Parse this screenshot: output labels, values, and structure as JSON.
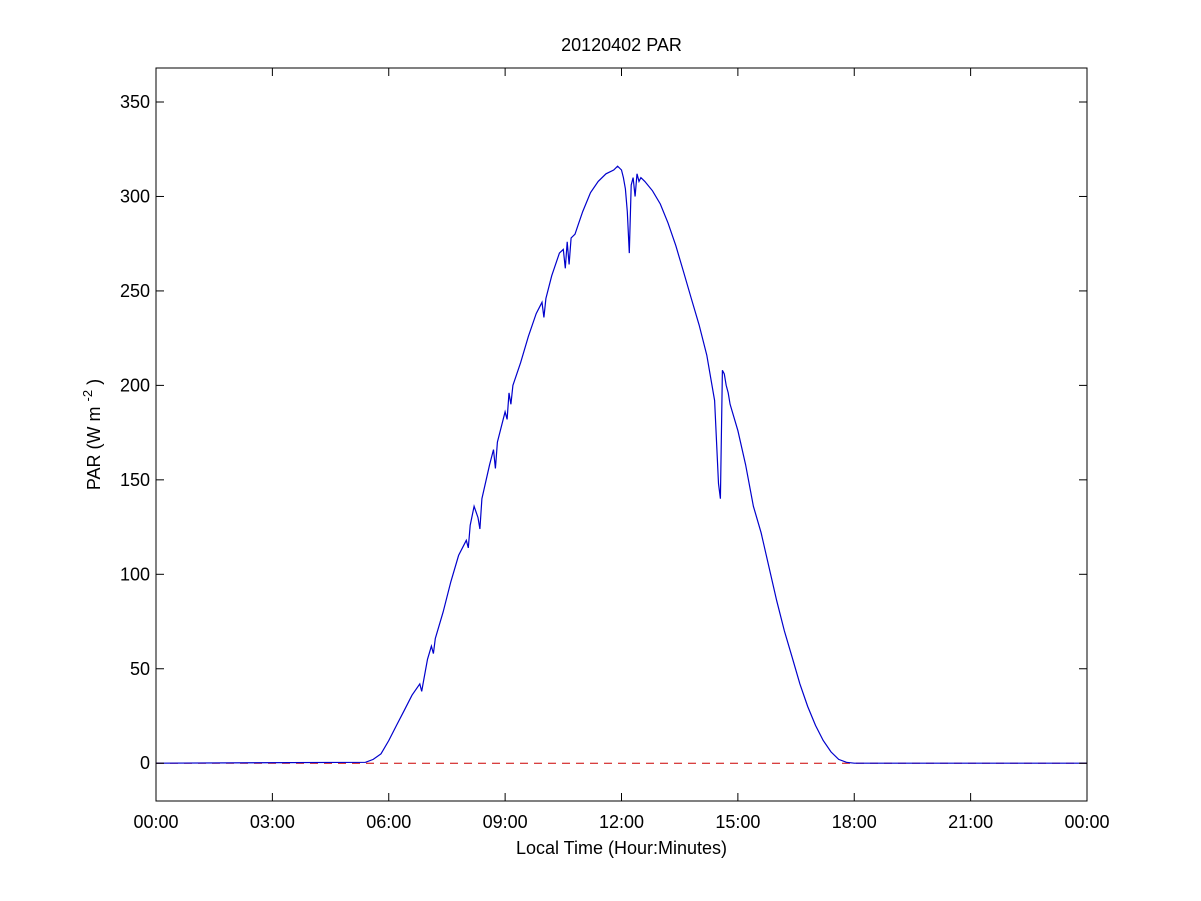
{
  "chart_data": {
    "type": "line",
    "title": "20120402 PAR",
    "xlabel": "Local Time (Hour:Minutes)",
    "ylabel_main": "PAR (W m",
    "ylabel_sup": "-2",
    "ylabel_tail": ")",
    "xlim": [
      0,
      24
    ],
    "ylim": [
      -20,
      368
    ],
    "x_ticks": [
      0,
      3,
      6,
      9,
      12,
      15,
      18,
      21,
      24
    ],
    "x_tick_labels": [
      "00:00",
      "03:00",
      "06:00",
      "09:00",
      "12:00",
      "15:00",
      "18:00",
      "21:00",
      "00:00"
    ],
    "y_ticks": [
      0,
      50,
      100,
      150,
      200,
      250,
      300,
      350
    ],
    "y_tick_labels": [
      "0",
      "50",
      "100",
      "150",
      "200",
      "250",
      "300",
      "350"
    ],
    "grid": false,
    "colors": {
      "series": "#0000cc",
      "baseline": "#cc0000",
      "axes": "#000000"
    },
    "baseline": {
      "y": 0,
      "style": "dashed"
    },
    "series": [
      {
        "x": [
          0,
          5.4,
          5.6,
          5.8,
          6.0,
          6.2,
          6.4,
          6.6,
          6.8,
          6.85,
          6.9,
          7.0,
          7.1,
          7.15,
          7.2,
          7.4,
          7.6,
          7.8,
          8.0,
          8.05,
          8.1,
          8.2,
          8.3,
          8.35,
          8.4,
          8.6,
          8.7,
          8.75,
          8.8,
          9.0,
          9.05,
          9.1,
          9.15,
          9.2,
          9.4,
          9.6,
          9.8,
          9.95,
          10.0,
          10.05,
          10.2,
          10.4,
          10.5,
          10.55,
          10.6,
          10.65,
          10.7,
          10.8,
          10.9,
          11.0,
          11.2,
          11.4,
          11.6,
          11.8,
          11.9,
          12.0,
          12.05,
          12.1,
          12.15,
          12.2,
          12.25,
          12.3,
          12.35,
          12.4,
          12.45,
          12.5,
          12.6,
          12.8,
          13.0,
          13.2,
          13.4,
          13.6,
          13.8,
          14.0,
          14.2,
          14.4,
          14.5,
          14.55,
          14.6,
          14.65,
          14.7,
          14.75,
          14.8,
          15.0,
          15.2,
          15.4,
          15.6,
          15.8,
          16.0,
          16.2,
          16.4,
          16.6,
          16.8,
          17.0,
          17.2,
          17.4,
          17.6,
          17.8,
          18.0,
          18.2,
          18.4,
          18.6,
          24
        ],
        "y": [
          0,
          0.5,
          2,
          5,
          12,
          20,
          28,
          36,
          42,
          38,
          44,
          55,
          62,
          58,
          66,
          80,
          96,
          110,
          118,
          114,
          126,
          136,
          130,
          124,
          140,
          158,
          166,
          156,
          170,
          186,
          182,
          196,
          190,
          200,
          212,
          226,
          238,
          244,
          236,
          246,
          258,
          270,
          272,
          262,
          276,
          264,
          278,
          280,
          286,
          292,
          302,
          308,
          312,
          314,
          316,
          314,
          310,
          304,
          292,
          270,
          306,
          310,
          300,
          312,
          308,
          310,
          308,
          303,
          296,
          286,
          274,
          260,
          246,
          232,
          216,
          192,
          148,
          140,
          208,
          206,
          200,
          196,
          190,
          176,
          158,
          136,
          122,
          104,
          86,
          70,
          56,
          42,
          30,
          20,
          12,
          6,
          2,
          0.5,
          0,
          0,
          0,
          0,
          0
        ]
      }
    ]
  }
}
